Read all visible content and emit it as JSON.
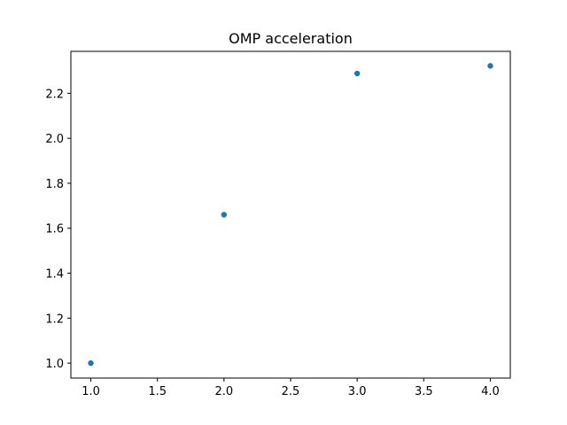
{
  "chart_data": {
    "type": "scatter",
    "title": "OMP acceleration",
    "xlabel": "",
    "ylabel": "",
    "xlim": [
      0.85,
      4.15
    ],
    "ylim": [
      0.9335,
      2.3865
    ],
    "x_ticks": [
      1.0,
      1.5,
      2.0,
      2.5,
      3.0,
      3.5,
      4.0
    ],
    "x_tick_labels": [
      "1.0",
      "1.5",
      "2.0",
      "2.5",
      "3.0",
      "3.5",
      "4.0"
    ],
    "y_ticks": [
      1.0,
      1.2,
      1.4,
      1.6,
      1.8,
      2.0,
      2.2
    ],
    "y_tick_labels": [
      "1.0",
      "1.2",
      "1.4",
      "1.6",
      "1.8",
      "2.0",
      "2.2"
    ],
    "grid": false,
    "series": [
      {
        "x": [
          1,
          2,
          3,
          4
        ],
        "y": [
          1.0,
          1.66,
          2.288,
          2.322
        ],
        "color": "#1f77b4"
      }
    ]
  }
}
